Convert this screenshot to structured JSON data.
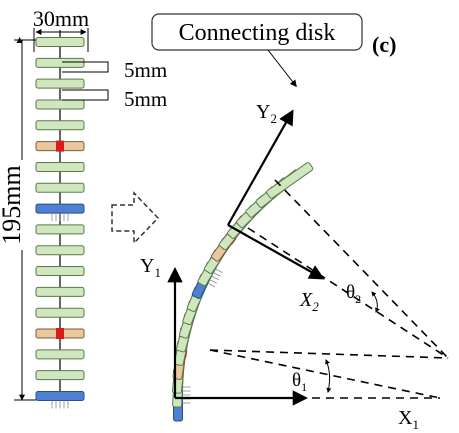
{
  "labels": {
    "width_dim": "30mm",
    "spacing_1": "5mm",
    "spacing_2": "5mm",
    "height_dim": "195mm",
    "callout": "Connecting disk",
    "panel": "(c)",
    "y1_base": "Y",
    "y1_sub": "1",
    "x1_base": "X",
    "x1_sub": "1",
    "y2_base": "Y",
    "y2_sub": "2",
    "x2_base": "X",
    "x2_sub": "2",
    "theta1_base": "θ",
    "theta1_sub": "1",
    "theta2_base": "θ",
    "theta2_sub": "2"
  },
  "colors": {
    "spacer_disk": "#cfe6bf",
    "connecting_disk": "#e8c89c",
    "base_disk": "#4f7fd0",
    "marker": "#d81b1b"
  },
  "straight_column": {
    "disk_types": [
      "green",
      "green",
      "green",
      "green",
      "green",
      "tan",
      "green",
      "green",
      "blue",
      "green",
      "green",
      "green",
      "green",
      "green",
      "tan",
      "green",
      "green",
      "blue"
    ]
  },
  "bent_column": {
    "disk_types": [
      "blue",
      "green",
      "green",
      "tan",
      "green",
      "green",
      "green",
      "green",
      "green",
      "blue",
      "green",
      "green",
      "tan",
      "green",
      "green",
      "green",
      "green",
      "green",
      "green"
    ]
  }
}
